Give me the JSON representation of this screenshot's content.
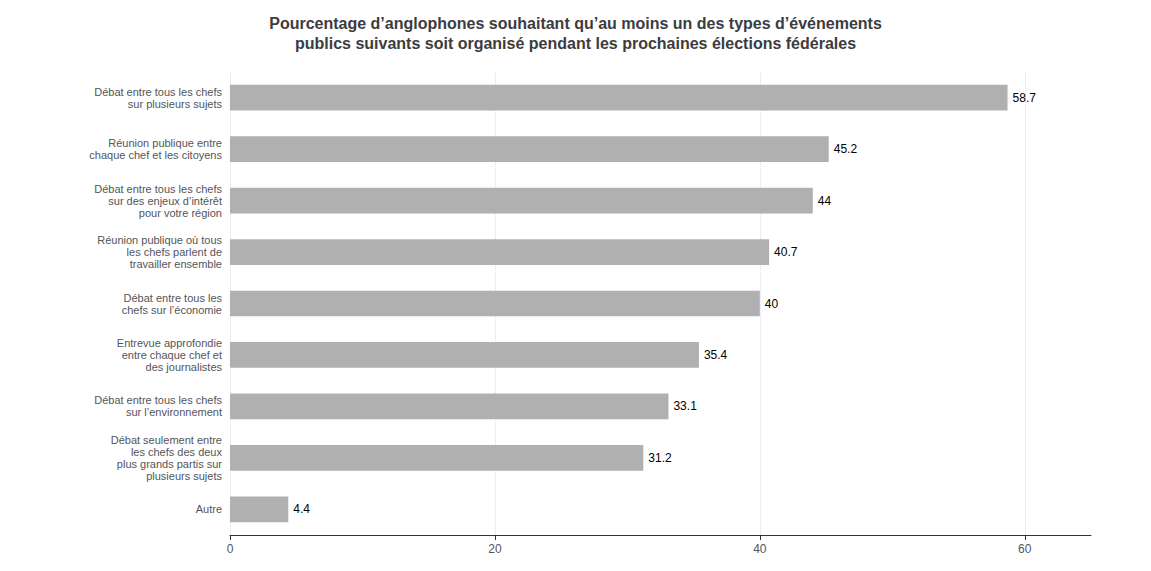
{
  "chart_data": {
    "type": "bar",
    "orientation": "horizontal",
    "title": "Pourcentage d’anglophones souhaitant qu’au moins un des types d’événements\npublics suivants soit organisé pendant les prochaines élections fédérales",
    "categories": [
      "Débat entre tous les chefs\nsur plusieurs sujets",
      "Réunion publique entre\nchaque chef et les citoyens",
      "Débat entre tous les chefs\nsur des enjeux d’intérêt\npour votre région",
      "Réunion publique où tous\nles chefs parlent de\ntravailler ensemble",
      "Débat entre tous les\nchefs sur l’économie",
      "Entrevue approfondie\nentre chaque chef et\ndes journalistes",
      "Débat entre tous les chefs\nsur l’environnement",
      "Débat seulement entre\nles chefs des deux\nplus grands partis sur\nplusieurs sujets",
      "Autre"
    ],
    "values": [
      58.7,
      45.2,
      44.0,
      40.7,
      40.0,
      35.4,
      33.1,
      31.2,
      4.4
    ],
    "color": "#b0b0b0",
    "xlim": [
      0,
      65
    ],
    "xticks": [
      0,
      20,
      40,
      60
    ],
    "grid": true,
    "data_labels": true
  }
}
